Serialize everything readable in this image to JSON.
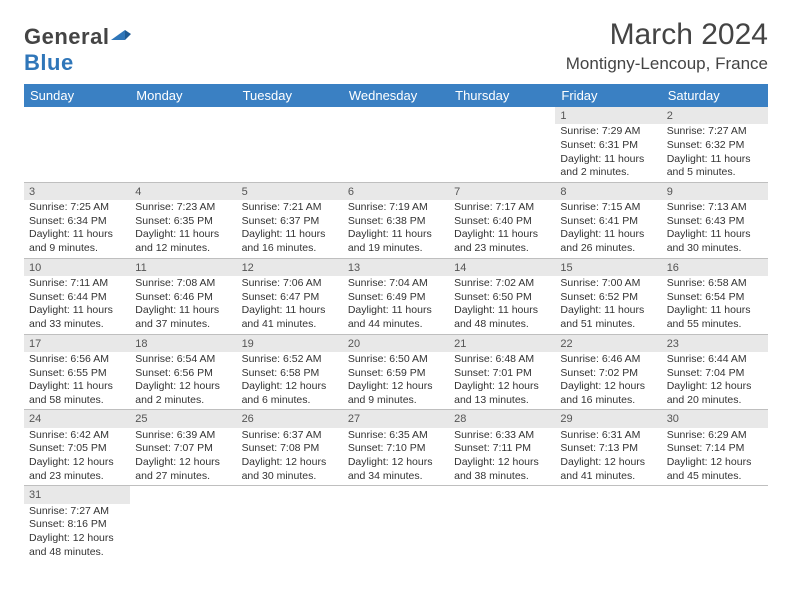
{
  "brand": {
    "part1": "General",
    "part2": "Blue"
  },
  "title": "March 2024",
  "location": "Montigny-Lencoup, France",
  "columns": [
    "Sunday",
    "Monday",
    "Tuesday",
    "Wednesday",
    "Thursday",
    "Friday",
    "Saturday"
  ],
  "colors": {
    "header_bg": "#3a80c3",
    "header_fg": "#ffffff",
    "daynum_bg": "#e8e8e8",
    "rule": "#3a80c3"
  },
  "weeks": [
    [
      null,
      null,
      null,
      null,
      null,
      {
        "n": "1",
        "sr": "7:29 AM",
        "ss": "6:31 PM",
        "dl": "11 hours and 2 minutes."
      },
      {
        "n": "2",
        "sr": "7:27 AM",
        "ss": "6:32 PM",
        "dl": "11 hours and 5 minutes."
      }
    ],
    [
      {
        "n": "3",
        "sr": "7:25 AM",
        "ss": "6:34 PM",
        "dl": "11 hours and 9 minutes."
      },
      {
        "n": "4",
        "sr": "7:23 AM",
        "ss": "6:35 PM",
        "dl": "11 hours and 12 minutes."
      },
      {
        "n": "5",
        "sr": "7:21 AM",
        "ss": "6:37 PM",
        "dl": "11 hours and 16 minutes."
      },
      {
        "n": "6",
        "sr": "7:19 AM",
        "ss": "6:38 PM",
        "dl": "11 hours and 19 minutes."
      },
      {
        "n": "7",
        "sr": "7:17 AM",
        "ss": "6:40 PM",
        "dl": "11 hours and 23 minutes."
      },
      {
        "n": "8",
        "sr": "7:15 AM",
        "ss": "6:41 PM",
        "dl": "11 hours and 26 minutes."
      },
      {
        "n": "9",
        "sr": "7:13 AM",
        "ss": "6:43 PM",
        "dl": "11 hours and 30 minutes."
      }
    ],
    [
      {
        "n": "10",
        "sr": "7:11 AM",
        "ss": "6:44 PM",
        "dl": "11 hours and 33 minutes."
      },
      {
        "n": "11",
        "sr": "7:08 AM",
        "ss": "6:46 PM",
        "dl": "11 hours and 37 minutes."
      },
      {
        "n": "12",
        "sr": "7:06 AM",
        "ss": "6:47 PM",
        "dl": "11 hours and 41 minutes."
      },
      {
        "n": "13",
        "sr": "7:04 AM",
        "ss": "6:49 PM",
        "dl": "11 hours and 44 minutes."
      },
      {
        "n": "14",
        "sr": "7:02 AM",
        "ss": "6:50 PM",
        "dl": "11 hours and 48 minutes."
      },
      {
        "n": "15",
        "sr": "7:00 AM",
        "ss": "6:52 PM",
        "dl": "11 hours and 51 minutes."
      },
      {
        "n": "16",
        "sr": "6:58 AM",
        "ss": "6:54 PM",
        "dl": "11 hours and 55 minutes."
      }
    ],
    [
      {
        "n": "17",
        "sr": "6:56 AM",
        "ss": "6:55 PM",
        "dl": "11 hours and 58 minutes."
      },
      {
        "n": "18",
        "sr": "6:54 AM",
        "ss": "6:56 PM",
        "dl": "12 hours and 2 minutes."
      },
      {
        "n": "19",
        "sr": "6:52 AM",
        "ss": "6:58 PM",
        "dl": "12 hours and 6 minutes."
      },
      {
        "n": "20",
        "sr": "6:50 AM",
        "ss": "6:59 PM",
        "dl": "12 hours and 9 minutes."
      },
      {
        "n": "21",
        "sr": "6:48 AM",
        "ss": "7:01 PM",
        "dl": "12 hours and 13 minutes."
      },
      {
        "n": "22",
        "sr": "6:46 AM",
        "ss": "7:02 PM",
        "dl": "12 hours and 16 minutes."
      },
      {
        "n": "23",
        "sr": "6:44 AM",
        "ss": "7:04 PM",
        "dl": "12 hours and 20 minutes."
      }
    ],
    [
      {
        "n": "24",
        "sr": "6:42 AM",
        "ss": "7:05 PM",
        "dl": "12 hours and 23 minutes."
      },
      {
        "n": "25",
        "sr": "6:39 AM",
        "ss": "7:07 PM",
        "dl": "12 hours and 27 minutes."
      },
      {
        "n": "26",
        "sr": "6:37 AM",
        "ss": "7:08 PM",
        "dl": "12 hours and 30 minutes."
      },
      {
        "n": "27",
        "sr": "6:35 AM",
        "ss": "7:10 PM",
        "dl": "12 hours and 34 minutes."
      },
      {
        "n": "28",
        "sr": "6:33 AM",
        "ss": "7:11 PM",
        "dl": "12 hours and 38 minutes."
      },
      {
        "n": "29",
        "sr": "6:31 AM",
        "ss": "7:13 PM",
        "dl": "12 hours and 41 minutes."
      },
      {
        "n": "30",
        "sr": "6:29 AM",
        "ss": "7:14 PM",
        "dl": "12 hours and 45 minutes."
      }
    ],
    [
      {
        "n": "31",
        "sr": "7:27 AM",
        "ss": "8:16 PM",
        "dl": "12 hours and 48 minutes."
      },
      null,
      null,
      null,
      null,
      null,
      null
    ]
  ],
  "labels": {
    "sunrise": "Sunrise:",
    "sunset": "Sunset:",
    "daylight": "Daylight:"
  }
}
